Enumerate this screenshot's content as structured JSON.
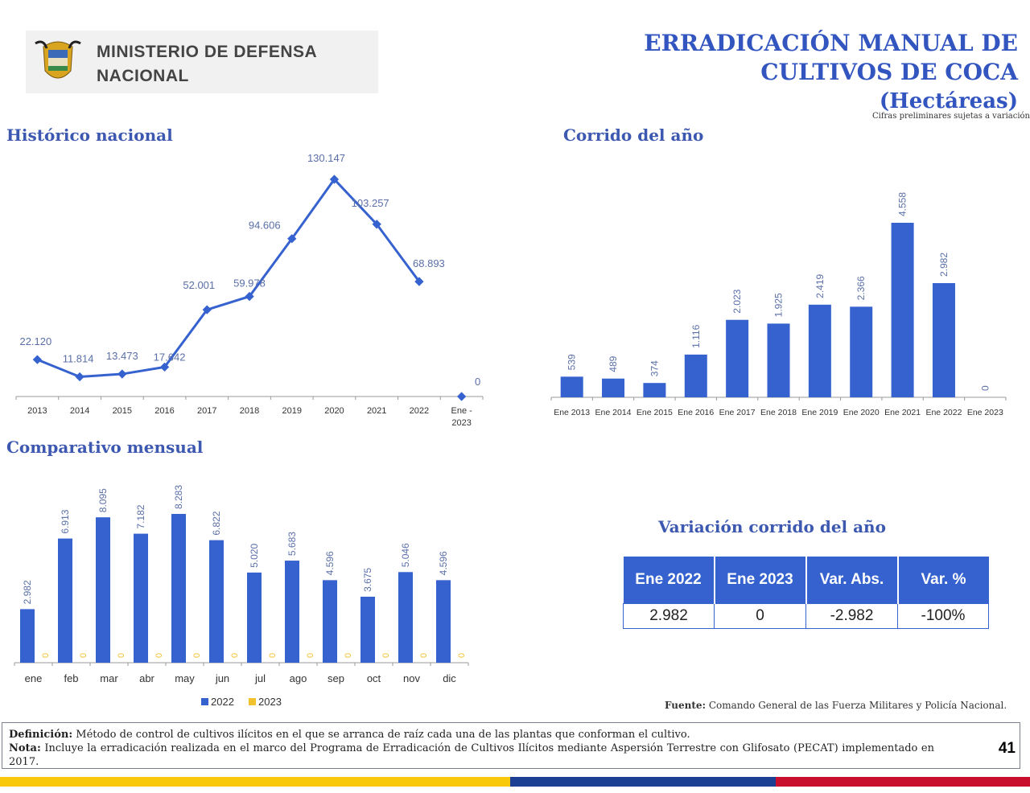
{
  "header": {
    "org_line1": "MINISTERIO DE DEFENSA",
    "org_line2": "NACIONAL",
    "title_line1": "ERRADICACIÓN MANUAL DE",
    "title_line2": "CULTIVOS DE COCA",
    "title_line3": "(Hectáreas)",
    "disclaimer": "Cifras preliminares sujetas a variación"
  },
  "sections": {
    "historico": "Histórico nacional",
    "corrido": "Corrido del año",
    "mensual": "Comparativo mensual",
    "variacion": "Variación corrido del año"
  },
  "colors": {
    "blue": "#3562cf",
    "yellow": "#f2c12e",
    "title": "#3355c0",
    "red": "#c8102e",
    "flag_blue": "#1d3f93"
  },
  "chart_data": [
    {
      "type": "line",
      "title": "Histórico nacional",
      "categories": [
        "2013",
        "2014",
        "2015",
        "2016",
        "2017",
        "2018",
        "2019",
        "2020",
        "2021",
        "2022",
        "Ene - 2023"
      ],
      "values": [
        22120,
        11814,
        13473,
        17642,
        52001,
        59978,
        94606,
        130147,
        103257,
        68893,
        0
      ],
      "labels": [
        "22.120",
        "11.814",
        "13.473",
        "17.642",
        "52.001",
        "59.978",
        "94.606",
        "130.147",
        "103.257",
        "68.893",
        "0"
      ],
      "grid": false
    },
    {
      "type": "bar",
      "title": "Corrido del año",
      "categories": [
        "Ene 2013",
        "Ene 2014",
        "Ene 2015",
        "Ene 2016",
        "Ene 2017",
        "Ene 2018",
        "Ene 2019",
        "Ene 2020",
        "Ene 2021",
        "Ene 2022",
        "Ene 2023"
      ],
      "values": [
        539,
        489,
        374,
        1116,
        2023,
        1925,
        2419,
        2366,
        4558,
        2982,
        0
      ],
      "labels": [
        "539",
        "489",
        "374",
        "1.116",
        "2.023",
        "1.925",
        "2.419",
        "2.366",
        "4.558",
        "2.982",
        "0"
      ],
      "grid": false
    },
    {
      "type": "bar",
      "title": "Comparativo mensual",
      "categories": [
        "ene",
        "feb",
        "mar",
        "abr",
        "may",
        "jun",
        "jul",
        "ago",
        "sep",
        "oct",
        "nov",
        "dic"
      ],
      "series": [
        {
          "name": "2022",
          "values": [
            2982,
            6913,
            8095,
            7182,
            8283,
            6822,
            5020,
            5683,
            4596,
            3675,
            5046,
            4596
          ],
          "labels": [
            "2.982",
            "6.913",
            "8.095",
            "7.182",
            "8.283",
            "6.822",
            "5.020",
            "5.683",
            "4.596",
            "3.675",
            "5.046",
            "4.596"
          ]
        },
        {
          "name": "2023",
          "values": [
            0,
            0,
            0,
            0,
            0,
            0,
            0,
            0,
            0,
            0,
            0,
            0
          ],
          "labels": [
            "0",
            "0",
            "0",
            "0",
            "0",
            "0",
            "0",
            "0",
            "0",
            "0",
            "0",
            "0"
          ]
        }
      ],
      "legend": "bottom",
      "grid": false
    }
  ],
  "table": {
    "headers": [
      "Ene 2022",
      "Ene 2023",
      "Var. Abs.",
      "Var. %"
    ],
    "row": [
      "2.982",
      "0",
      "-2.982",
      "-100%"
    ]
  },
  "fuente": {
    "label": "Fuente:",
    "text": " Comando General de las Fuerza Militares y Policía Nacional."
  },
  "footer": {
    "def_label": "Definición:",
    "def_text": " Método de control de cultivos ilícitos en el que se arranca de raíz cada una de las plantas que conforman el cultivo.",
    "nota_label": "Nota:",
    "nota_text": " Incluye la erradicación realizada en el marco del Programa de Erradicación de Cultivos Ilícitos mediante Aspersión Terrestre con Glifosato (PECAT) implementado en 2017.",
    "page": "41"
  }
}
